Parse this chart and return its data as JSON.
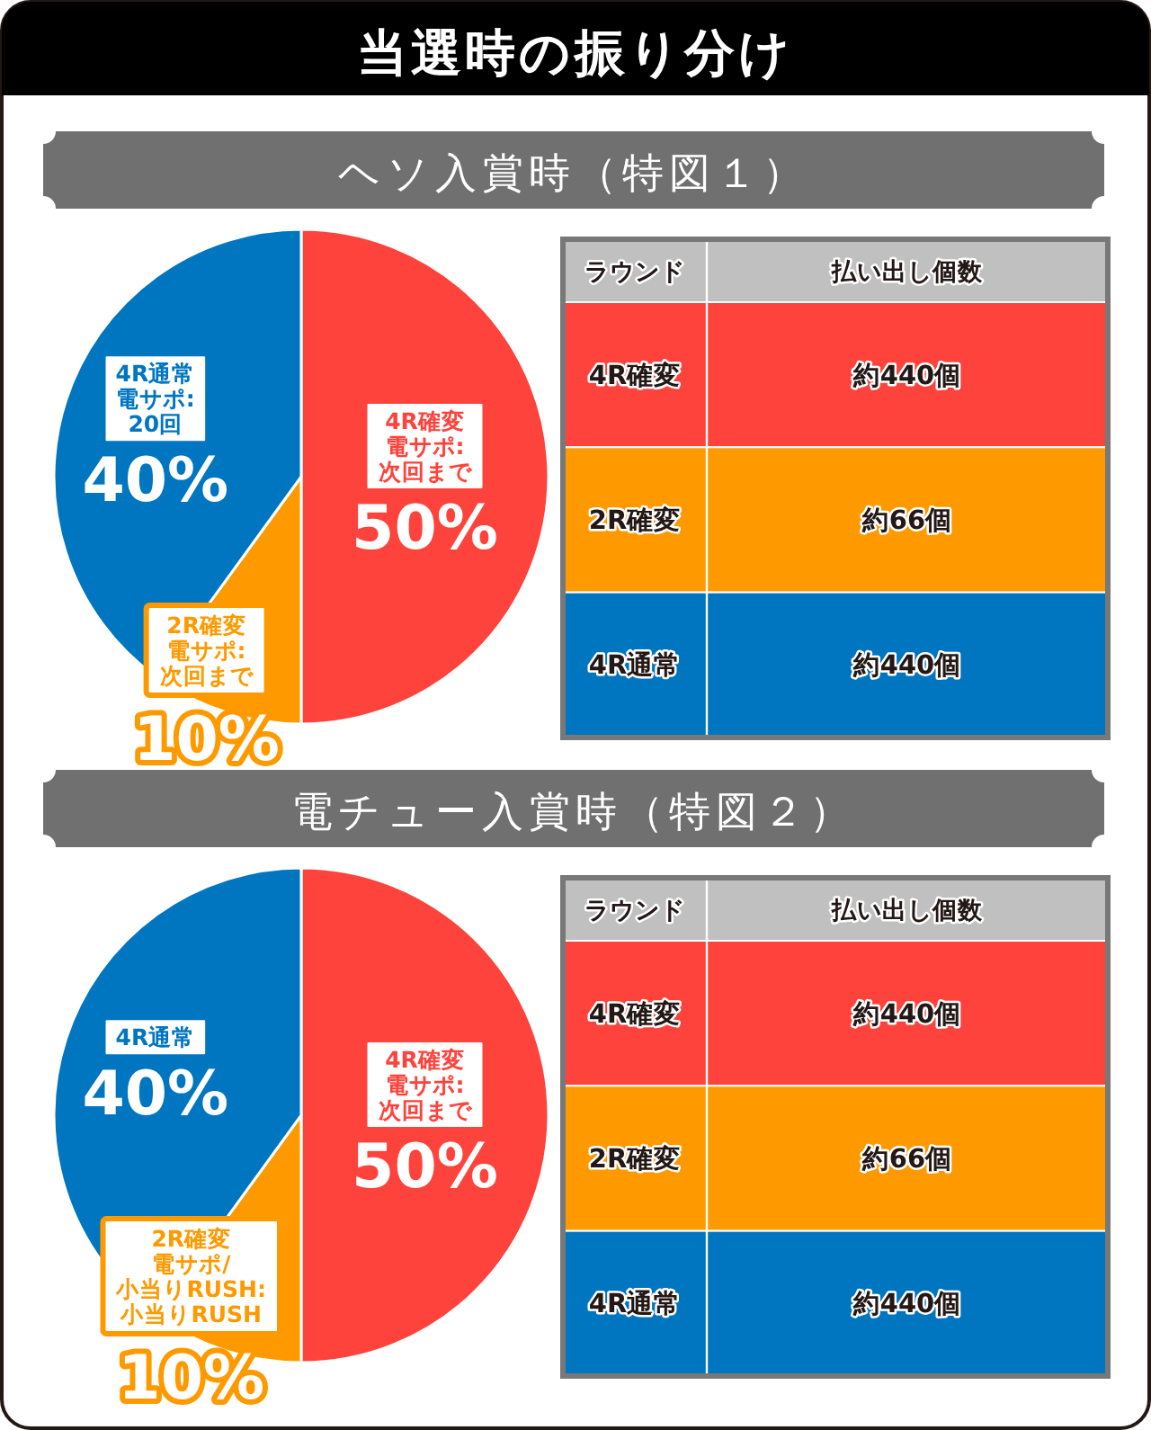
{
  "chart_data": [
    {
      "type": "pie",
      "title": "当選時の振り分け",
      "subtitle": "ヘソ入賞時（特図１）",
      "categories": [
        "4R確変電サポ:次回まで",
        "2R確変電サポ:次回まで",
        "4R通常電サポ:20回"
      ],
      "values": [
        50,
        10,
        40
      ],
      "colors": [
        "#fe433c",
        "#fe9a00",
        "#0076c1"
      ],
      "value_labels": [
        "50%",
        "10%",
        "40%"
      ]
    },
    {
      "type": "other",
      "xlabel": "ラウンド",
      "ylabel": "払い出し個数",
      "categories": [
        "4R確変",
        "2R確変",
        "4R通常"
      ],
      "value_labels": [
        "約440個",
        "約66個",
        "約440個"
      ],
      "colors": [
        "#fe433c",
        "#fe9a00",
        "#0076c1"
      ]
    },
    {
      "type": "pie",
      "title": "電チュー入賞時（特図２）",
      "categories": [
        "4R確変電サポ:次回まで",
        "2R確変電サポ/小当りRUSH:小当りRUSH",
        "4R通常"
      ],
      "values": [
        50,
        10,
        40
      ],
      "colors": [
        "#fe433c",
        "#fe9a00",
        "#0076c1"
      ],
      "value_labels": [
        "50%",
        "10%",
        "40%"
      ]
    },
    {
      "type": "other",
      "xlabel": "ラウンド",
      "ylabel": "払い出し個数",
      "categories": [
        "4R確変",
        "2R確変",
        "4R通常"
      ],
      "value_labels": [
        "約440個",
        "約66個",
        "約440個"
      ],
      "colors": [
        "#fe433c",
        "#fe9a00",
        "#0076c1"
      ]
    }
  ]
}
